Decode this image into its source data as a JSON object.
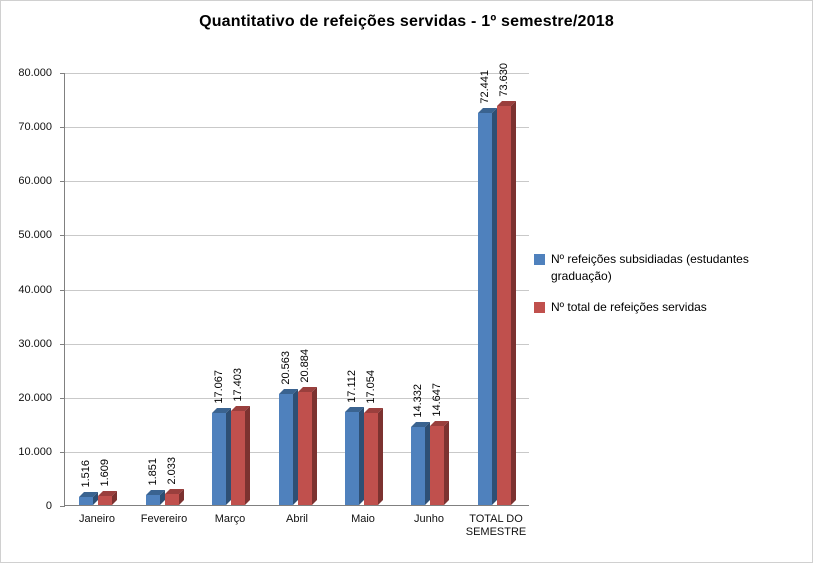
{
  "chart_data": {
    "type": "bar",
    "style": "3d-clustered-column",
    "title": "Quantitativo de refeições servidas - 1º semestre/2018",
    "categories": [
      "Janeiro",
      "Fevereiro",
      "Março",
      "Abril",
      "Maio",
      "Junho",
      "TOTAL DO SEMESTRE"
    ],
    "series": [
      {
        "name": "Nº refeições subsidiadas (estudantes graduação)",
        "color": "#4F81BD",
        "top_color": "#3A6390",
        "side_color": "#2E4F74",
        "values": [
          1516,
          1851,
          17067,
          20563,
          17112,
          14332,
          72441
        ],
        "labels": [
          "1.516",
          "1.851",
          "17.067",
          "20.563",
          "17.112",
          "14.332",
          "72.441"
        ]
      },
      {
        "name": "Nº total de refeições servidas",
        "color": "#C0504D",
        "top_color": "#9A3F3D",
        "side_color": "#7C3230",
        "values": [
          1609,
          2033,
          17403,
          20884,
          17054,
          14647,
          73630
        ],
        "labels": [
          "1.609",
          "2.033",
          "17.403",
          "20.884",
          "17.054",
          "14.647",
          "73.630"
        ]
      }
    ],
    "y_axis": {
      "min": 0,
      "max": 80000,
      "step": 10000,
      "tick_labels": [
        "0",
        "10.000",
        "20.000",
        "30.000",
        "40.000",
        "50.000",
        "60.000",
        "70.000",
        "80.000"
      ]
    },
    "xlabel": "",
    "ylabel": "",
    "grid": true,
    "legend_position": "right",
    "gridline_color": "#c9c9c9",
    "axis_color": "#808080"
  }
}
